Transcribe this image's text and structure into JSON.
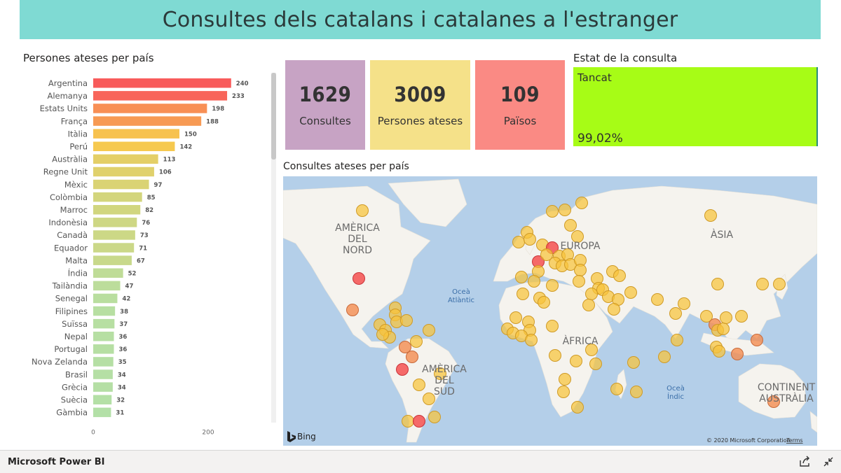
{
  "header": {
    "title": "Consultes dels catalans i catalanes a l'estranger"
  },
  "bar_section": {
    "title": "Persones ateses per país"
  },
  "kpis": [
    {
      "value": "1629",
      "label": "Consultes",
      "color": "#c7a3c4"
    },
    {
      "value": "3009",
      "label": "Persones ateses",
      "color": "#f5e189"
    },
    {
      "value": "109",
      "label": "Països",
      "color": "#fa8a84"
    }
  ],
  "status": {
    "title": "Estat de la consulta",
    "state": "Tancat",
    "percent": "99,02%",
    "color": "#a7fc16"
  },
  "map": {
    "title": "Consultes ateses per país",
    "labels": {
      "north_america": [
        "AMÈRICA",
        "DEL",
        "NORD"
      ],
      "south_america": [
        "AMÈRICA",
        "DEL",
        "SUD"
      ],
      "europe": "EUROPA",
      "asia": "ÀSIA",
      "africa": "ÀFRICA",
      "oceania": [
        "CONTINENT",
        "AUSTRÀLIA"
      ],
      "atlantic": [
        "Oceà",
        "Atlàntic"
      ],
      "indian": [
        "Oceà",
        "Índic"
      ]
    },
    "provider": "Bing",
    "copyright": "© 2020 Microsoft Corporation",
    "terms": "Terms"
  },
  "taskbar": {
    "brand": "Microsoft Power BI"
  },
  "chart_data": {
    "type": "bar",
    "orientation": "horizontal",
    "title": "Persones ateses per país",
    "categories": [
      "Argentina",
      "Alemanya",
      "Estats Units",
      "França",
      "Itàlia",
      "Perú",
      "Austràlia",
      "Regne Unit",
      "Mèxic",
      "Colòmbia",
      "Marroc",
      "Indonèsia",
      "Canadà",
      "Equador",
      "Malta",
      "Índia",
      "Tailàndia",
      "Senegal",
      "Filipines",
      "Suïssa",
      "Nepal",
      "Portugal",
      "Nova Zelanda",
      "Brasil",
      "Grècia",
      "Suècia",
      "Gàmbia"
    ],
    "values": [
      240,
      233,
      198,
      188,
      150,
      142,
      113,
      106,
      97,
      85,
      82,
      76,
      73,
      71,
      67,
      52,
      47,
      42,
      38,
      37,
      36,
      36,
      35,
      34,
      34,
      32,
      31
    ],
    "xticks": [
      0,
      200
    ],
    "xlim": [
      0,
      260
    ],
    "color_scale": [
      "#f85b5b",
      "#f7c94e",
      "#b3e0a7"
    ]
  }
}
